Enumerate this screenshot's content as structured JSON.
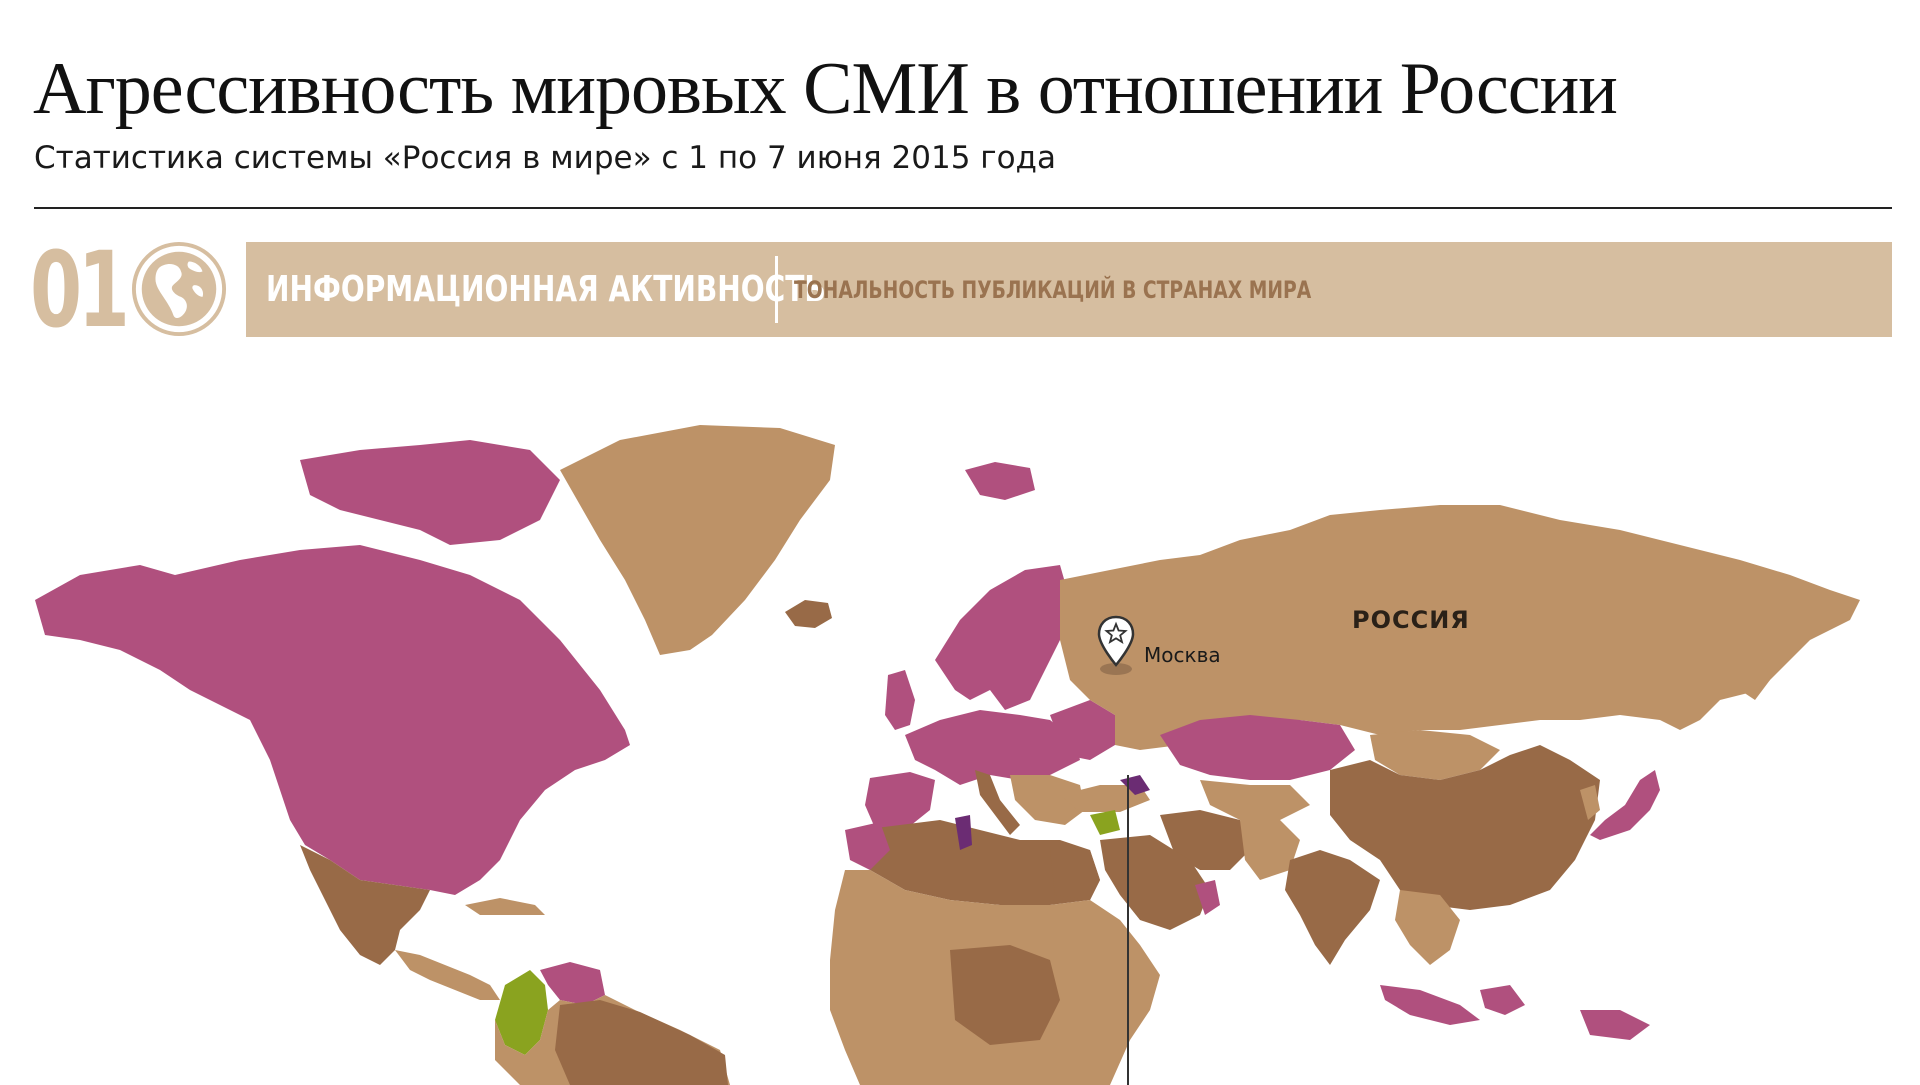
{
  "header": {
    "title": "Агрессивность мировых СМИ в отношении России",
    "subtitle": "Статистика системы «Россия в мире» с 1 по 7 июня 2015 года"
  },
  "section": {
    "number": "01",
    "icon": "globe-icon",
    "main_label": "ИНФОРМАЦИОННАЯ АКТИВНОСТЬ",
    "sub_label": "ТОНАЛЬНОСТЬ ПУБЛИКАЦИЙ В СТРАНАХ МИРА"
  },
  "colors": {
    "banner": "#d6bea0",
    "banner_sub_text": "#9a7350",
    "tone_pink": "#b0507e",
    "tone_purple": "#6b2c73",
    "tone_green": "#8aa31f",
    "tone_light_brown": "#bd9267",
    "tone_dark_brown": "#986a47"
  },
  "map": {
    "labels": {
      "russia": "РОССИЯ",
      "moscow": "Москва"
    },
    "marker_icon": "star-pin-icon"
  }
}
